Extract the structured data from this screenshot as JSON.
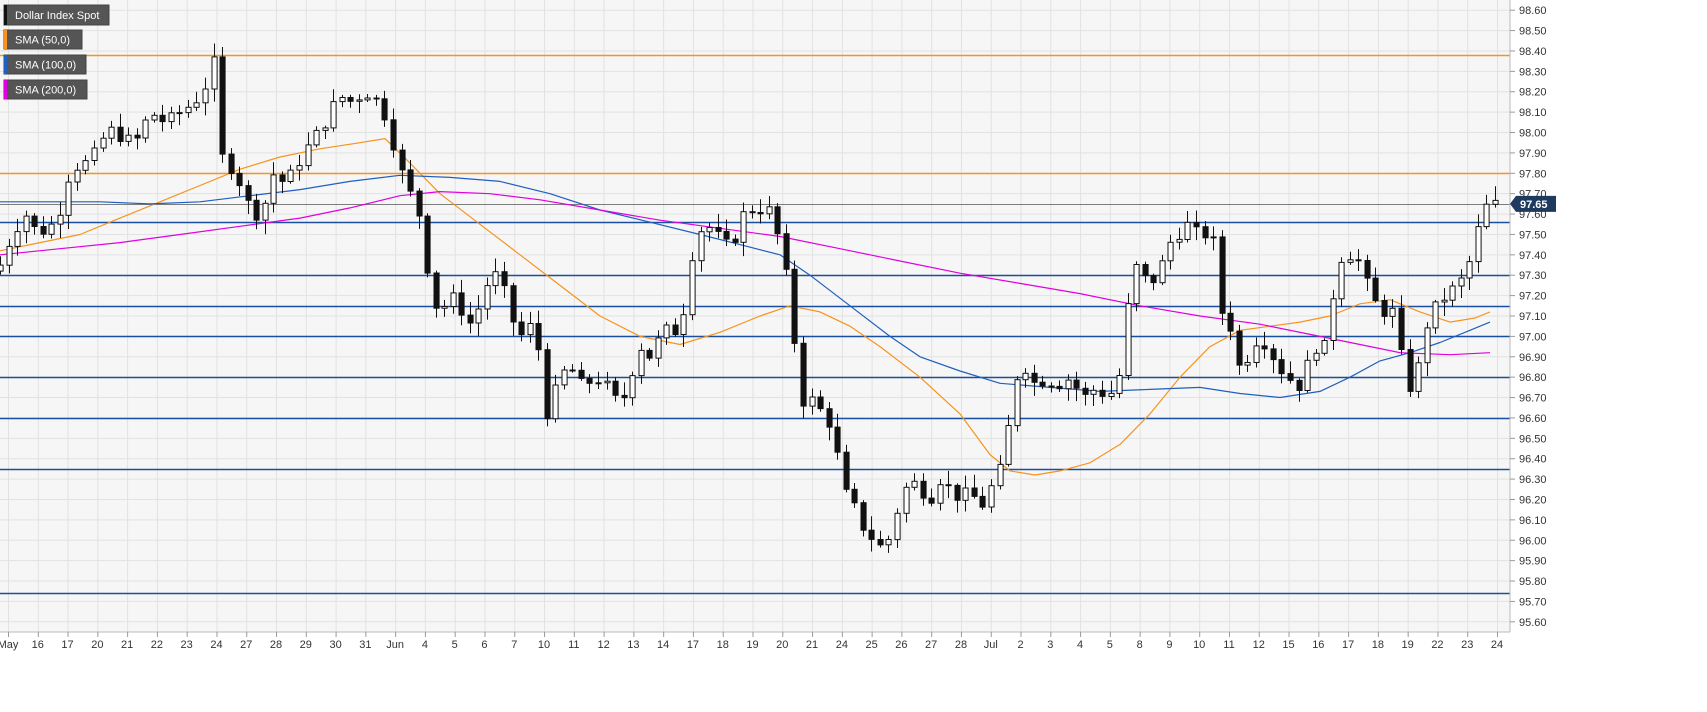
{
  "chart_data": {
    "type": "candlestick",
    "title": "",
    "ylim": [
      95.55,
      98.65
    ],
    "y_ticks": [
      95.6,
      95.7,
      95.8,
      95.9,
      96.0,
      96.1,
      96.2,
      96.3,
      96.4,
      96.5,
      96.6,
      96.7,
      96.8,
      96.9,
      97.0,
      97.1,
      97.2,
      97.3,
      97.4,
      97.5,
      97.6,
      97.7,
      97.8,
      97.9,
      98.0,
      98.1,
      98.2,
      98.3,
      98.4,
      98.5,
      98.6
    ],
    "y_tick_labels": [
      "95.60",
      "95.70",
      "95.80",
      "95.90",
      "96.00",
      "96.10",
      "96.20",
      "96.30",
      "96.40",
      "96.50",
      "96.60",
      "96.70",
      "96.80",
      "96.90",
      "97.00",
      "97.10",
      "97.20",
      "97.30",
      "97.40",
      "97.50",
      "97.60",
      "97.70",
      "97.80",
      "97.90",
      "98.00",
      "98.10",
      "98.20",
      "98.30",
      "98.40",
      "98.50",
      "98.60"
    ],
    "x_labels": [
      "May",
      "16",
      "17",
      "20",
      "21",
      "22",
      "23",
      "24",
      "27",
      "28",
      "29",
      "30",
      "31",
      "Jun",
      "4",
      "5",
      "6",
      "7",
      "10",
      "11",
      "12",
      "13",
      "14",
      "17",
      "18",
      "19",
      "20",
      "21",
      "24",
      "25",
      "26",
      "27",
      "28",
      "Jul",
      "2",
      "3",
      "4",
      "5",
      "8",
      "9",
      "10",
      "11",
      "12",
      "15",
      "16",
      "17",
      "18",
      "19",
      "22",
      "23",
      "24"
    ],
    "grid": true,
    "legend_position": "top-left",
    "legend": [
      {
        "label": "Dollar Index Spot",
        "color": "#000000"
      },
      {
        "label": "SMA (50,0)",
        "color": "#f7931e"
      },
      {
        "label": "SMA (100,0)",
        "color": "#1f5fbf"
      },
      {
        "label": "SMA (200,0)",
        "color": "#e000e0"
      }
    ],
    "last_price": 97.65,
    "last_price_label": "97.65",
    "horizontal_levels": [
      {
        "value": 98.38,
        "color": "#f7931e"
      },
      {
        "value": 97.8,
        "color": "#f7931e"
      },
      {
        "value": 97.56,
        "color": "#1a4fa0"
      },
      {
        "value": 97.3,
        "color": "#1a4fa0"
      },
      {
        "value": 97.15,
        "color": "#1a4fa0"
      },
      {
        "value": 97.0,
        "color": "#1a4fa0"
      },
      {
        "value": 96.8,
        "color": "#1a4fa0"
      },
      {
        "value": 96.6,
        "color": "#1a4fa0"
      },
      {
        "value": 96.35,
        "color": "#1a4fa0"
      },
      {
        "value": 95.74,
        "color": "#1a4fa0"
      }
    ],
    "close_path": [
      [
        0,
        97.35
      ],
      [
        12,
        97.5
      ],
      [
        25,
        97.6
      ],
      [
        38,
        97.5
      ],
      [
        52,
        97.55
      ],
      [
        63,
        97.65
      ],
      [
        70,
        97.82
      ],
      [
        85,
        97.85
      ],
      [
        95,
        97.9
      ],
      [
        108,
        98.02
      ],
      [
        120,
        97.98
      ],
      [
        135,
        97.95
      ],
      [
        150,
        98.1
      ],
      [
        165,
        98.05
      ],
      [
        180,
        98.1
      ],
      [
        195,
        98.15
      ],
      [
        208,
        98.25
      ],
      [
        214,
        98.35
      ],
      [
        218,
        97.9
      ],
      [
        228,
        97.85
      ],
      [
        240,
        97.75
      ],
      [
        252,
        97.6
      ],
      [
        262,
        97.6
      ],
      [
        272,
        97.8
      ],
      [
        285,
        97.75
      ],
      [
        298,
        97.85
      ],
      [
        310,
        97.95
      ],
      [
        325,
        98.05
      ],
      [
        338,
        98.18
      ],
      [
        352,
        98.15
      ],
      [
        365,
        98.2
      ],
      [
        378,
        98.15
      ],
      [
        388,
        98.05
      ],
      [
        395,
        97.9
      ],
      [
        405,
        97.75
      ],
      [
        415,
        97.65
      ],
      [
        422,
        97.55
      ],
      [
        428,
        97.3
      ],
      [
        434,
        97.15
      ],
      [
        445,
        97.15
      ],
      [
        455,
        97.2
      ],
      [
        468,
        97.05
      ],
      [
        480,
        97.15
      ],
      [
        490,
        97.3
      ],
      [
        500,
        97.3
      ],
      [
        510,
        97.1
      ],
      [
        520,
        97.0
      ],
      [
        530,
        97.05
      ],
      [
        538,
        96.95
      ],
      [
        543,
        96.65
      ],
      [
        550,
        96.6
      ],
      [
        558,
        96.8
      ],
      [
        570,
        96.85
      ],
      [
        583,
        96.75
      ],
      [
        595,
        96.8
      ],
      [
        608,
        96.75
      ],
      [
        620,
        96.65
      ],
      [
        630,
        96.8
      ],
      [
        640,
        96.95
      ],
      [
        650,
        96.9
      ],
      [
        660,
        97.0
      ],
      [
        670,
        97.05
      ],
      [
        680,
        97.0
      ],
      [
        688,
        97.3
      ],
      [
        696,
        97.5
      ],
      [
        706,
        97.55
      ],
      [
        716,
        97.5
      ],
      [
        726,
        97.45
      ],
      [
        738,
        97.5
      ],
      [
        746,
        97.65
      ],
      [
        756,
        97.6
      ],
      [
        766,
        97.65
      ],
      [
        775,
        97.55
      ],
      [
        782,
        97.4
      ],
      [
        790,
        97.2
      ],
      [
        796,
        96.9
      ],
      [
        804,
        96.65
      ],
      [
        814,
        96.7
      ],
      [
        824,
        96.6
      ],
      [
        834,
        96.55
      ],
      [
        840,
        96.3
      ],
      [
        848,
        96.2
      ],
      [
        856,
        96.15
      ],
      [
        864,
        96.05
      ],
      [
        874,
        96.0
      ],
      [
        884,
        95.95
      ],
      [
        892,
        96.05
      ],
      [
        900,
        96.2
      ],
      [
        910,
        96.3
      ],
      [
        920,
        96.25
      ],
      [
        930,
        96.2
      ],
      [
        940,
        96.3
      ],
      [
        950,
        96.25
      ],
      [
        960,
        96.2
      ],
      [
        970,
        96.25
      ],
      [
        980,
        96.15
      ],
      [
        990,
        96.25
      ],
      [
        1000,
        96.35
      ],
      [
        1008,
        96.55
      ],
      [
        1016,
        96.8
      ],
      [
        1026,
        96.85
      ],
      [
        1036,
        96.75
      ],
      [
        1046,
        96.8
      ],
      [
        1056,
        96.75
      ],
      [
        1066,
        96.8
      ],
      [
        1076,
        96.75
      ],
      [
        1086,
        96.7
      ],
      [
        1096,
        96.75
      ],
      [
        1106,
        96.7
      ],
      [
        1116,
        96.75
      ],
      [
        1124,
        96.9
      ],
      [
        1130,
        97.3
      ],
      [
        1138,
        97.35
      ],
      [
        1148,
        97.25
      ],
      [
        1158,
        97.3
      ],
      [
        1168,
        97.45
      ],
      [
        1178,
        97.5
      ],
      [
        1188,
        97.55
      ],
      [
        1198,
        97.5
      ],
      [
        1208,
        97.5
      ],
      [
        1215,
        97.45
      ],
      [
        1222,
        97.1
      ],
      [
        1230,
        97.05
      ],
      [
        1238,
        96.85
      ],
      [
        1248,
        96.9
      ],
      [
        1258,
        97.0
      ],
      [
        1268,
        96.95
      ],
      [
        1278,
        96.85
      ],
      [
        1288,
        96.8
      ],
      [
        1298,
        96.75
      ],
      [
        1306,
        96.85
      ],
      [
        1316,
        96.95
      ],
      [
        1326,
        96.95
      ],
      [
        1334,
        97.25
      ],
      [
        1342,
        97.4
      ],
      [
        1352,
        97.4
      ],
      [
        1362,
        97.35
      ],
      [
        1370,
        97.2
      ],
      [
        1378,
        97.15
      ],
      [
        1388,
        97.1
      ],
      [
        1398,
        97.15
      ],
      [
        1403,
        96.75
      ],
      [
        1410,
        96.75
      ],
      [
        1418,
        96.85
      ],
      [
        1426,
        97.05
      ],
      [
        1436,
        97.15
      ],
      [
        1446,
        97.2
      ],
      [
        1456,
        97.25
      ],
      [
        1466,
        97.3
      ],
      [
        1474,
        97.45
      ],
      [
        1482,
        97.6
      ],
      [
        1488,
        97.65
      ]
    ],
    "sma_50": [
      [
        0,
        97.42
      ],
      [
        40,
        97.46
      ],
      [
        80,
        97.5
      ],
      [
        120,
        97.58
      ],
      [
        160,
        97.66
      ],
      [
        200,
        97.74
      ],
      [
        240,
        97.82
      ],
      [
        280,
        97.88
      ],
      [
        320,
        97.92
      ],
      [
        360,
        97.95
      ],
      [
        385,
        97.97
      ],
      [
        410,
        97.85
      ],
      [
        440,
        97.7
      ],
      [
        480,
        97.55
      ],
      [
        520,
        97.4
      ],
      [
        560,
        97.25
      ],
      [
        600,
        97.1
      ],
      [
        640,
        97.0
      ],
      [
        680,
        96.96
      ],
      [
        720,
        97.02
      ],
      [
        760,
        97.1
      ],
      [
        790,
        97.15
      ],
      [
        820,
        97.12
      ],
      [
        850,
        97.05
      ],
      [
        880,
        96.95
      ],
      [
        920,
        96.8
      ],
      [
        960,
        96.62
      ],
      [
        990,
        96.42
      ],
      [
        1010,
        96.34
      ],
      [
        1035,
        96.32
      ],
      [
        1060,
        96.34
      ],
      [
        1090,
        96.38
      ],
      [
        1120,
        96.47
      ],
      [
        1150,
        96.62
      ],
      [
        1180,
        96.8
      ],
      [
        1210,
        96.95
      ],
      [
        1240,
        97.03
      ],
      [
        1270,
        97.05
      ],
      [
        1300,
        97.07
      ],
      [
        1330,
        97.1
      ],
      [
        1360,
        97.16
      ],
      [
        1390,
        97.18
      ],
      [
        1420,
        97.12
      ],
      [
        1450,
        97.07
      ],
      [
        1475,
        97.09
      ],
      [
        1490,
        97.12
      ]
    ],
    "sma_100": [
      [
        0,
        97.66
      ],
      [
        50,
        97.66
      ],
      [
        100,
        97.66
      ],
      [
        150,
        97.65
      ],
      [
        200,
        97.66
      ],
      [
        250,
        97.69
      ],
      [
        300,
        97.72
      ],
      [
        350,
        97.76
      ],
      [
        400,
        97.79
      ],
      [
        450,
        97.78
      ],
      [
        500,
        97.76
      ],
      [
        550,
        97.7
      ],
      [
        600,
        97.62
      ],
      [
        650,
        97.56
      ],
      [
        700,
        97.5
      ],
      [
        740,
        97.45
      ],
      [
        780,
        97.4
      ],
      [
        810,
        97.3
      ],
      [
        850,
        97.15
      ],
      [
        890,
        97.0
      ],
      [
        920,
        96.9
      ],
      [
        960,
        96.83
      ],
      [
        1000,
        96.77
      ],
      [
        1050,
        96.75
      ],
      [
        1100,
        96.73
      ],
      [
        1150,
        96.74
      ],
      [
        1200,
        96.75
      ],
      [
        1240,
        96.72
      ],
      [
        1280,
        96.7
      ],
      [
        1320,
        96.73
      ],
      [
        1350,
        96.8
      ],
      [
        1380,
        96.88
      ],
      [
        1410,
        96.92
      ],
      [
        1440,
        96.97
      ],
      [
        1470,
        97.03
      ],
      [
        1490,
        97.07
      ]
    ],
    "sma_200": [
      [
        0,
        97.4
      ],
      [
        60,
        97.43
      ],
      [
        120,
        97.46
      ],
      [
        180,
        97.5
      ],
      [
        240,
        97.54
      ],
      [
        300,
        97.58
      ],
      [
        350,
        97.63
      ],
      [
        400,
        97.69
      ],
      [
        440,
        97.71
      ],
      [
        490,
        97.7
      ],
      [
        540,
        97.67
      ],
      [
        600,
        97.62
      ],
      [
        660,
        97.57
      ],
      [
        720,
        97.53
      ],
      [
        780,
        97.49
      ],
      [
        840,
        97.43
      ],
      [
        900,
        97.37
      ],
      [
        960,
        97.31
      ],
      [
        1020,
        97.26
      ],
      [
        1080,
        97.21
      ],
      [
        1140,
        97.15
      ],
      [
        1200,
        97.1
      ],
      [
        1260,
        97.06
      ],
      [
        1320,
        97.0
      ],
      [
        1360,
        96.96
      ],
      [
        1400,
        96.92
      ],
      [
        1450,
        96.91
      ],
      [
        1490,
        96.92
      ]
    ]
  }
}
